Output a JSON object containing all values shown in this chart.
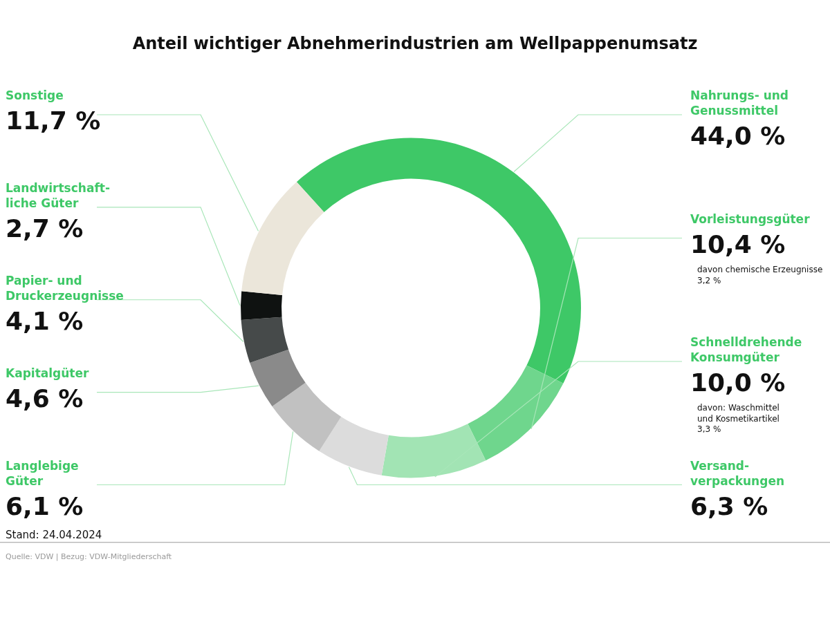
{
  "chart_data": {
    "type": "donut",
    "title": "Anteil wichtiger Abnehmerindustrien am Wellpappenumsatz",
    "categories": [
      "Nahrungs- und\nGenussmittel",
      "Vorleistungsgüter",
      "Schnelldrehende\nKonsumgüter",
      "Versand-\nverpackungen",
      "Langlebige\nGüter",
      "Kapitalgüter",
      "Papier- und\nDruckerzeugnisse",
      "Landwirtschaft-\nliche Güter",
      "Sonstige"
    ],
    "values": [
      44.0,
      10.4,
      10.0,
      6.3,
      6.1,
      4.6,
      4.1,
      2.7,
      11.7
    ],
    "value_labels": [
      "44,0 %",
      "10,4 %",
      "10,0 %",
      "6,3 %",
      "6,1 %",
      "4,6 %",
      "4,1 %",
      "2,7 %",
      "11,7 %"
    ],
    "colors": [
      "#3ec867",
      "#6fd68d",
      "#a2e4b4",
      "#dcdcdc",
      "#c1c1c1",
      "#8a8a8a",
      "#464a4a",
      "#0f1211",
      "#ebe6da"
    ],
    "annotations": [
      "davon chemische Erzeugnisse\n3,2 %",
      "davon: Waschmittel\nund Kosmetikartikel\n3,3 %",
      "Stand: 24.04.2024",
      "Quelle: VDW | Bezug: VDW-Mitgliederschaft"
    ]
  }
}
